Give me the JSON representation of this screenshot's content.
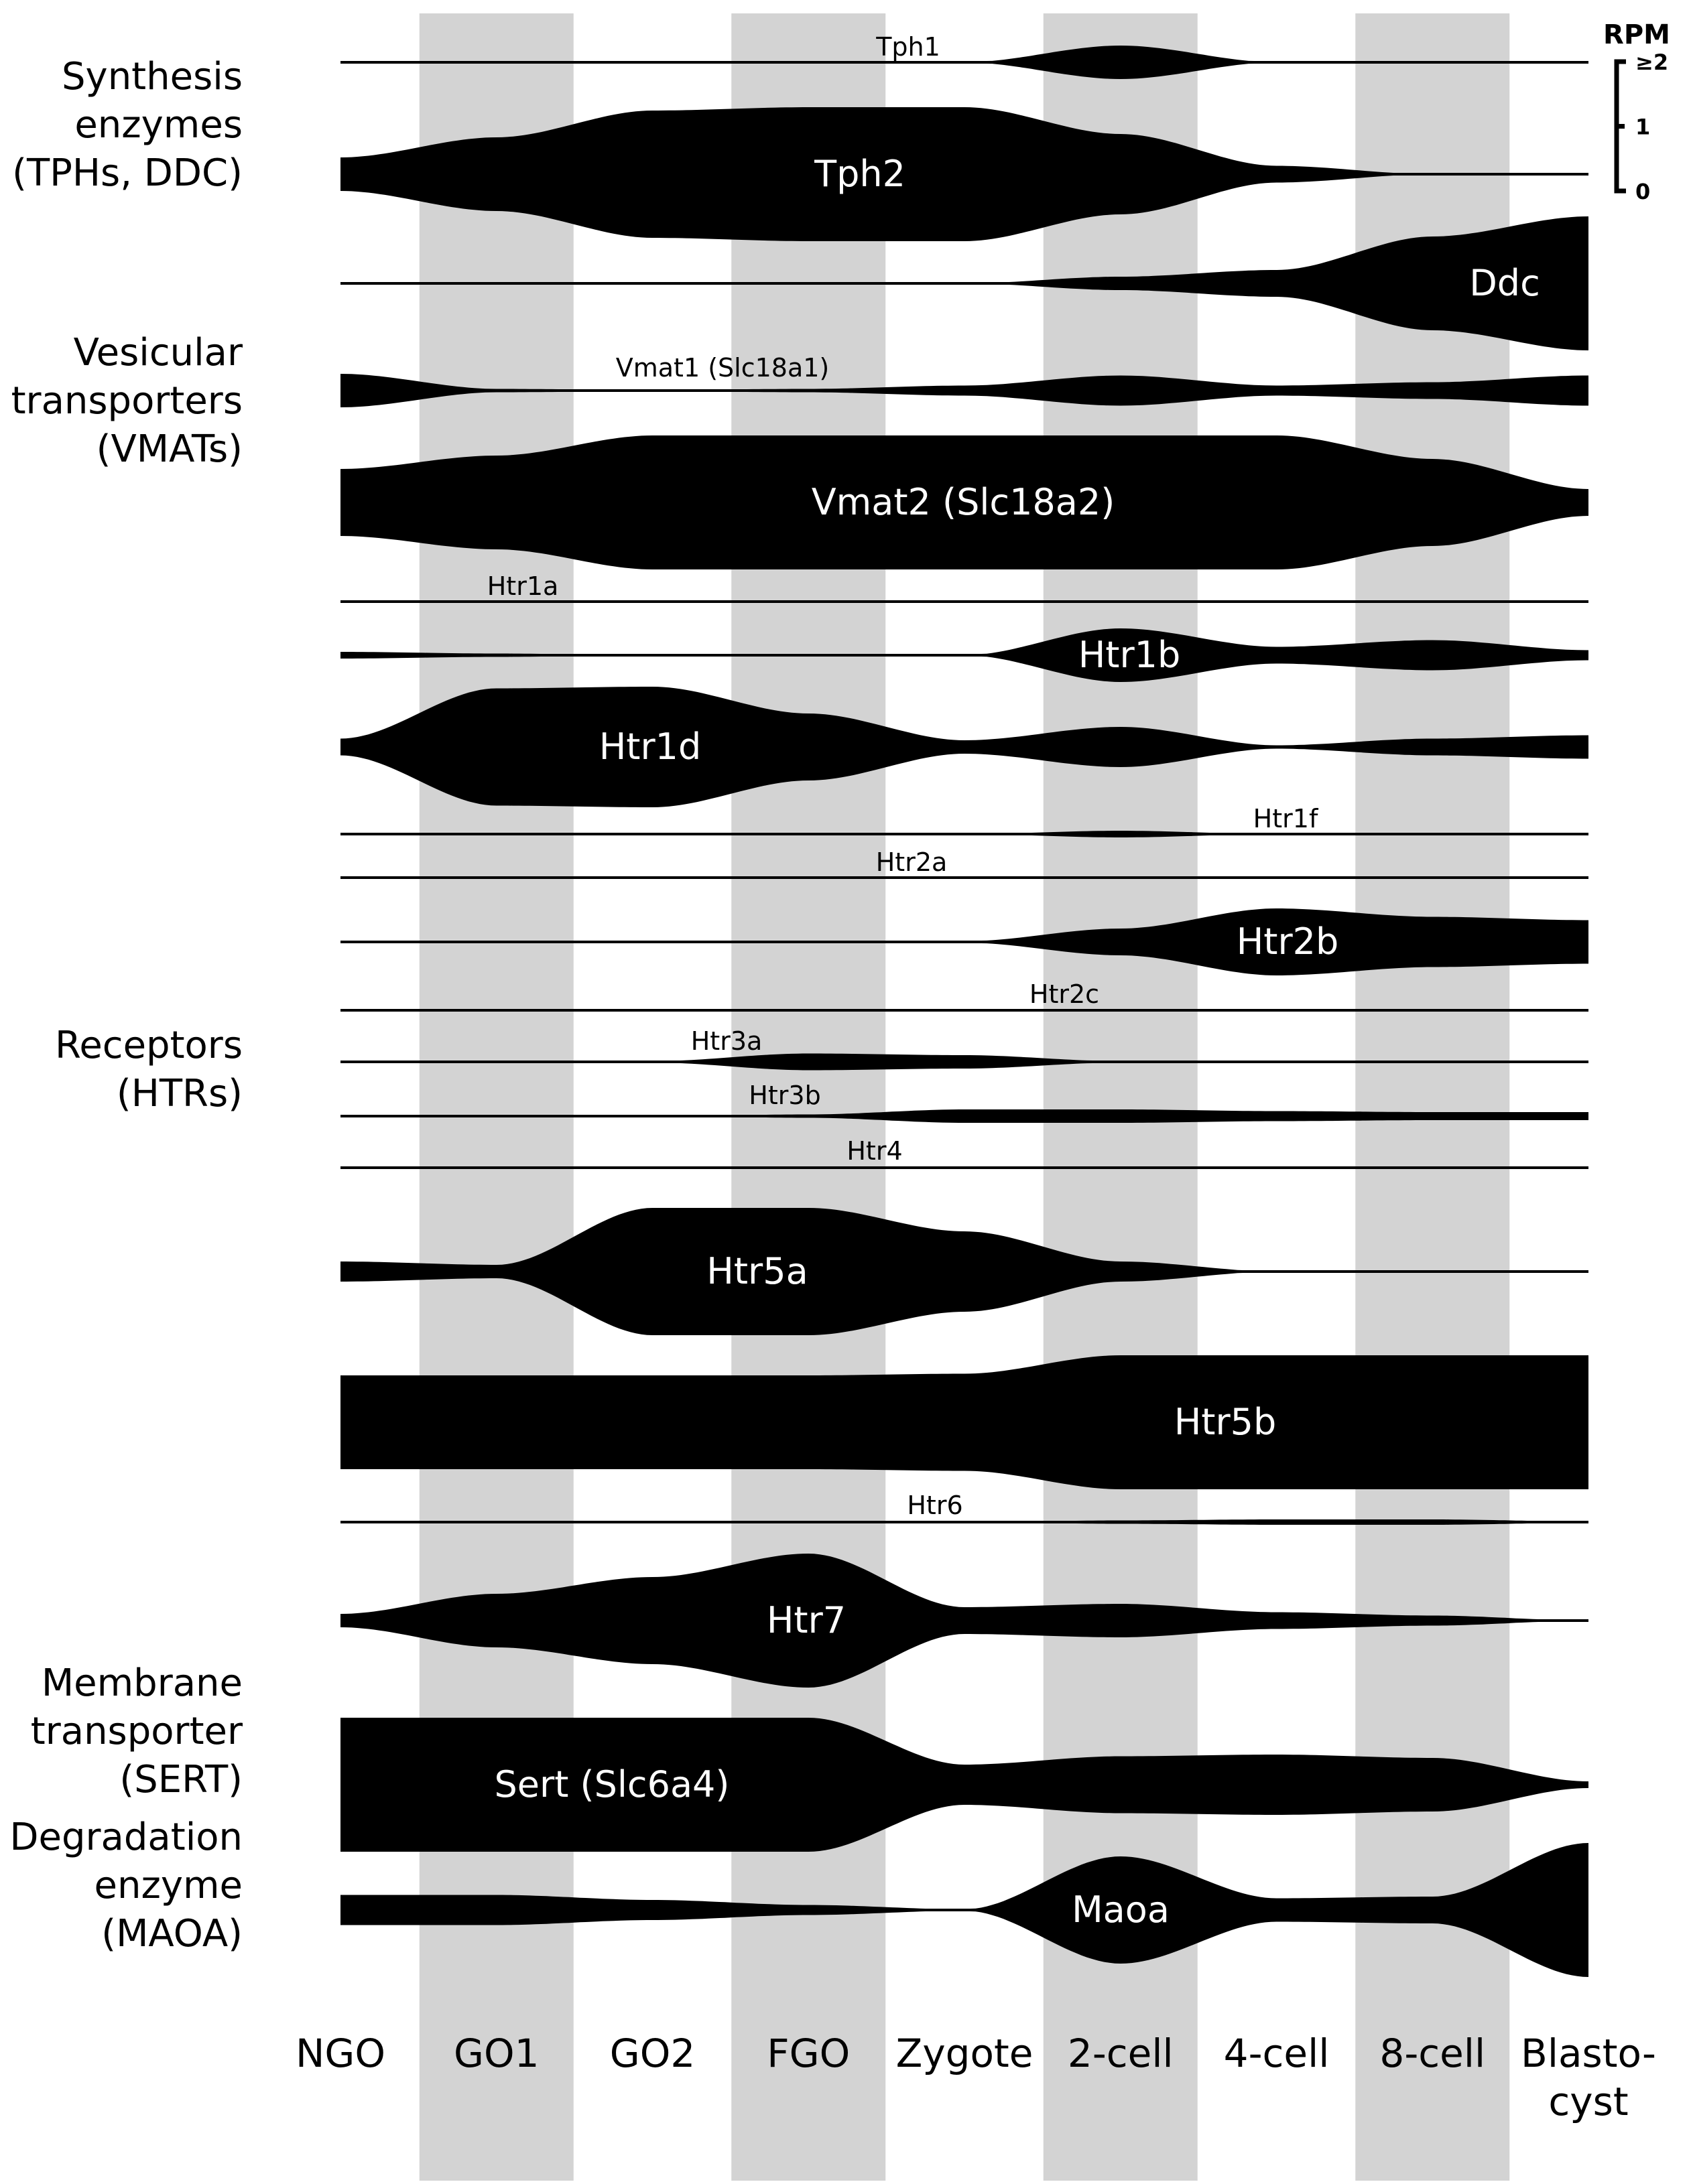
{
  "chart_data": {
    "type": "area",
    "subtype": "symmetric streamline (violin) expression profile",
    "x": [
      "NGO",
      "GO1",
      "GO2",
      "FGO",
      "Zygote",
      "2-cell",
      "4-cell",
      "8-cell",
      "Blasto-\ncyst"
    ],
    "x_labels": [
      {
        "lines": [
          "NGO"
        ]
      },
      {
        "lines": [
          "GO1"
        ]
      },
      {
        "lines": [
          "GO2"
        ]
      },
      {
        "lines": [
          "FGO"
        ]
      },
      {
        "lines": [
          "Zygote"
        ]
      },
      {
        "lines": [
          "2-cell"
        ]
      },
      {
        "lines": [
          "4-cell"
        ]
      },
      {
        "lines": [
          "8-cell"
        ]
      },
      {
        "lines": [
          "Blasto-",
          "cyst"
        ]
      }
    ],
    "shaded_stages": [
      "GO1",
      "FGO",
      "2-cell",
      "8-cell"
    ],
    "scale": {
      "title": "RPM",
      "ticks": [
        "0",
        "1",
        "≥2"
      ],
      "max": 2
    },
    "series": [
      {
        "name": "Tph1",
        "values": [
          0,
          0,
          0,
          0,
          0,
          0.5,
          0,
          0,
          0
        ],
        "label_size": "small"
      },
      {
        "name": "Tph2",
        "values": [
          0.5,
          1.1,
          1.9,
          2.0,
          2.0,
          1.2,
          0.25,
          0,
          0
        ],
        "label_size": "large"
      },
      {
        "name": "Ddc",
        "values": [
          0,
          0,
          0,
          0,
          0,
          0.2,
          0.4,
          1.4,
          2.0
        ],
        "label_size": "large"
      },
      {
        "name": "Vmat1 (Slc18a1)",
        "values": [
          0.5,
          0.05,
          0.02,
          0.05,
          0.15,
          0.45,
          0.15,
          0.25,
          0.45
        ],
        "label_size": "small"
      },
      {
        "name": "Vmat2 (Slc18a2)",
        "values": [
          1.0,
          1.4,
          2.0,
          2.0,
          2.0,
          2.0,
          2.0,
          1.3,
          0.4
        ],
        "label_size": "large"
      },
      {
        "name": "Htr1a",
        "values": [
          0,
          0,
          0,
          0,
          0,
          0,
          0,
          0,
          0
        ],
        "label_size": "small"
      },
      {
        "name": "Htr1b",
        "values": [
          0.1,
          0.05,
          0,
          0,
          0,
          0.8,
          0.25,
          0.45,
          0.15
        ],
        "label_size": "large"
      },
      {
        "name": "Htr1d",
        "values": [
          0.25,
          1.75,
          1.8,
          1.0,
          0.2,
          0.6,
          0.05,
          0.25,
          0.35
        ],
        "label_size": "large"
      },
      {
        "name": "Htr1f",
        "values": [
          0,
          0,
          0,
          0,
          0,
          0.1,
          0,
          0,
          0
        ],
        "label_size": "small"
      },
      {
        "name": "Htr2a",
        "values": [
          0,
          0,
          0,
          0,
          0,
          0,
          0,
          0,
          0
        ],
        "label_size": "small"
      },
      {
        "name": "Htr2b",
        "values": [
          0,
          0,
          0,
          0,
          0.02,
          0.4,
          1.0,
          0.75,
          0.65
        ],
        "label_size": "large"
      },
      {
        "name": "Htr2c",
        "values": [
          0,
          0,
          0,
          0,
          0,
          0,
          0,
          0,
          0
        ],
        "label_size": "small"
      },
      {
        "name": "Htr3a",
        "values": [
          0,
          0,
          0.02,
          0.25,
          0.2,
          0.02,
          0,
          0,
          0.03
        ],
        "label_size": "small"
      },
      {
        "name": "Htr3b",
        "values": [
          0,
          0,
          0,
          0.05,
          0.2,
          0.2,
          0.15,
          0.12,
          0.12
        ],
        "label_size": "small"
      },
      {
        "name": "Htr4",
        "values": [
          0,
          0,
          0,
          0,
          0,
          0,
          0,
          0,
          0
        ],
        "label_size": "small"
      },
      {
        "name": "Htr5a",
        "values": [
          0.3,
          0.2,
          1.9,
          1.9,
          1.2,
          0.3,
          0,
          0,
          0
        ],
        "label_size": "large"
      },
      {
        "name": "Htr5b",
        "values": [
          1.4,
          1.4,
          1.4,
          1.4,
          1.45,
          2.0,
          2.0,
          2.0,
          2.0
        ],
        "label_size": "large"
      },
      {
        "name": "Htr6",
        "values": [
          0,
          0,
          0,
          0,
          0,
          0.05,
          0.08,
          0.08,
          0.02
        ],
        "label_size": "small"
      },
      {
        "name": "Htr7",
        "values": [
          0.2,
          0.8,
          1.3,
          2.0,
          0.4,
          0.5,
          0.25,
          0.15,
          0
        ],
        "label_size": "large"
      },
      {
        "name": "Sert (Slc6a4)",
        "values": [
          2.0,
          2.0,
          2.0,
          2.0,
          0.6,
          0.85,
          0.9,
          0.8,
          0.1
        ],
        "label_size": "large"
      },
      {
        "name": "Maoa",
        "values": [
          0.45,
          0.45,
          0.3,
          0.15,
          0.02,
          1.6,
          0.35,
          0.4,
          2.0
        ],
        "label_size": "large"
      }
    ],
    "groups": [
      {
        "lines": [
          "Synthesis",
          "enzymes",
          "(TPHs, DDC)"
        ],
        "members": [
          "Tph1",
          "Tph2",
          "Ddc"
        ]
      },
      {
        "lines": [
          "Vesicular",
          "transporters",
          "(VMATs)"
        ],
        "members": [
          "Vmat1 (Slc18a1)",
          "Vmat2 (Slc18a2)"
        ]
      },
      {
        "lines": [
          "Receptors",
          "(HTRs)"
        ],
        "members": [
          "Htr1a",
          "Htr1b",
          "Htr1d",
          "Htr1f",
          "Htr2a",
          "Htr2b",
          "Htr2c",
          "Htr3a",
          "Htr3b",
          "Htr4",
          "Htr5a",
          "Htr5b",
          "Htr6",
          "Htr7"
        ]
      },
      {
        "lines": [
          "Membrane",
          "transporter",
          "(SERT)"
        ],
        "members": [
          "Sert (Slc6a4)"
        ]
      },
      {
        "lines": [
          "Degradation",
          "enzyme",
          "(MAOA)"
        ],
        "members": [
          "Maoa"
        ]
      }
    ],
    "colors": {
      "fill": "#000000",
      "band": "#d3d3d3",
      "label_on_fill": "#ffffff",
      "text": "#000000"
    }
  }
}
